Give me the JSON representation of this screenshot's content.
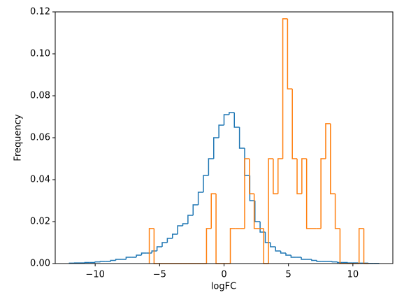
{
  "chart_data": {
    "type": "histogram",
    "xlabel": "logFC",
    "ylabel": "Frequency",
    "xlim": [
      -13.1,
      13.1
    ],
    "ylim": [
      0,
      0.12
    ],
    "xticks": [
      {
        "value": -10,
        "label": "−10"
      },
      {
        "value": -5,
        "label": "−5"
      },
      0,
      5,
      10
    ],
    "yticks": [
      {
        "value": 0,
        "label": "0.00"
      },
      {
        "value": 0.02,
        "label": "0.02"
      },
      {
        "value": 0.04,
        "label": "0.04"
      },
      {
        "value": 0.06,
        "label": "0.06"
      },
      {
        "value": 0.08,
        "label": "0.08"
      },
      {
        "value": 0.1,
        "label": "0.10"
      },
      {
        "value": 0.12,
        "label": "0.12"
      }
    ],
    "series": [
      {
        "color": "#1f77b4",
        "bins": [
          -12,
          -11.6,
          -11.2,
          -10.8,
          -10.4,
          -10,
          -9.6,
          -9.2,
          -8.8,
          -8.4,
          -8,
          -7.6,
          -7.2,
          -6.8,
          -6.4,
          -6,
          -5.6,
          -5.2,
          -4.8,
          -4.4,
          -4,
          -3.6,
          -3.2,
          -2.8,
          -2.4,
          -2,
          -1.6,
          -1.2,
          -0.8,
          -0.4,
          0,
          0.4,
          0.8,
          1.2,
          1.6,
          2,
          2.4,
          2.8,
          3.2,
          3.6,
          4,
          4.4,
          4.8,
          5.2,
          5.6,
          6,
          6.4,
          6.8,
          7.2,
          7.6,
          8,
          8.4,
          8.8,
          9.2,
          9.6,
          10,
          10.4,
          10.8,
          11.2,
          11.6,
          12
        ],
        "values": [
          0.0002,
          0.0003,
          0.0003,
          0.0005,
          0.0005,
          0.0008,
          0.001,
          0.001,
          0.0015,
          0.002,
          0.002,
          0.003,
          0.003,
          0.004,
          0.005,
          0.005,
          0.006,
          0.008,
          0.01,
          0.012,
          0.014,
          0.018,
          0.019,
          0.023,
          0.028,
          0.034,
          0.042,
          0.05,
          0.06,
          0.066,
          0.071,
          0.072,
          0.065,
          0.055,
          0.042,
          0.03,
          0.02,
          0.015,
          0.01,
          0.008,
          0.006,
          0.005,
          0.004,
          0.003,
          0.003,
          0.002,
          0.002,
          0.0015,
          0.001,
          0.001,
          0.001,
          0.0008,
          0.0005,
          0.0005,
          0.0003,
          0.0003,
          0.0002,
          0.0002,
          0.0001,
          0.0001
        ]
      },
      {
        "color": "#ff7f0e",
        "bins": [
          -5.8,
          -5.43,
          -5.06,
          -4.69,
          -4.32,
          -3.95,
          -3.58,
          -3.21,
          -2.84,
          -2.47,
          -2.1,
          -1.73,
          -1.36,
          -0.99,
          -0.62,
          -0.25,
          0.12,
          0.49,
          0.86,
          1.23,
          1.6,
          1.97,
          2.34,
          2.71,
          3.08,
          3.45,
          3.82,
          4.19,
          4.56,
          4.93,
          5.3,
          5.67,
          6.04,
          6.41,
          6.78,
          7.15,
          7.52,
          7.89,
          8.26,
          8.63,
          9.0,
          9.37,
          9.74,
          10.11,
          10.48,
          10.85,
          11.22
        ],
        "values": [
          0.0167,
          0,
          0,
          0,
          0,
          0,
          0,
          0,
          0,
          0,
          0,
          0,
          0.0167,
          0.0333,
          0,
          0,
          0,
          0.0167,
          0.0167,
          0.0167,
          0.05,
          0.0333,
          0.0167,
          0.0167,
          0,
          0.05,
          0.0333,
          0.05,
          0.1167,
          0.0833,
          0.05,
          0.0333,
          0.05,
          0.0167,
          0.0167,
          0.0167,
          0.05,
          0.0667,
          0.0333,
          0.0167,
          0,
          0,
          0,
          0,
          0.0167,
          0
        ]
      }
    ]
  }
}
